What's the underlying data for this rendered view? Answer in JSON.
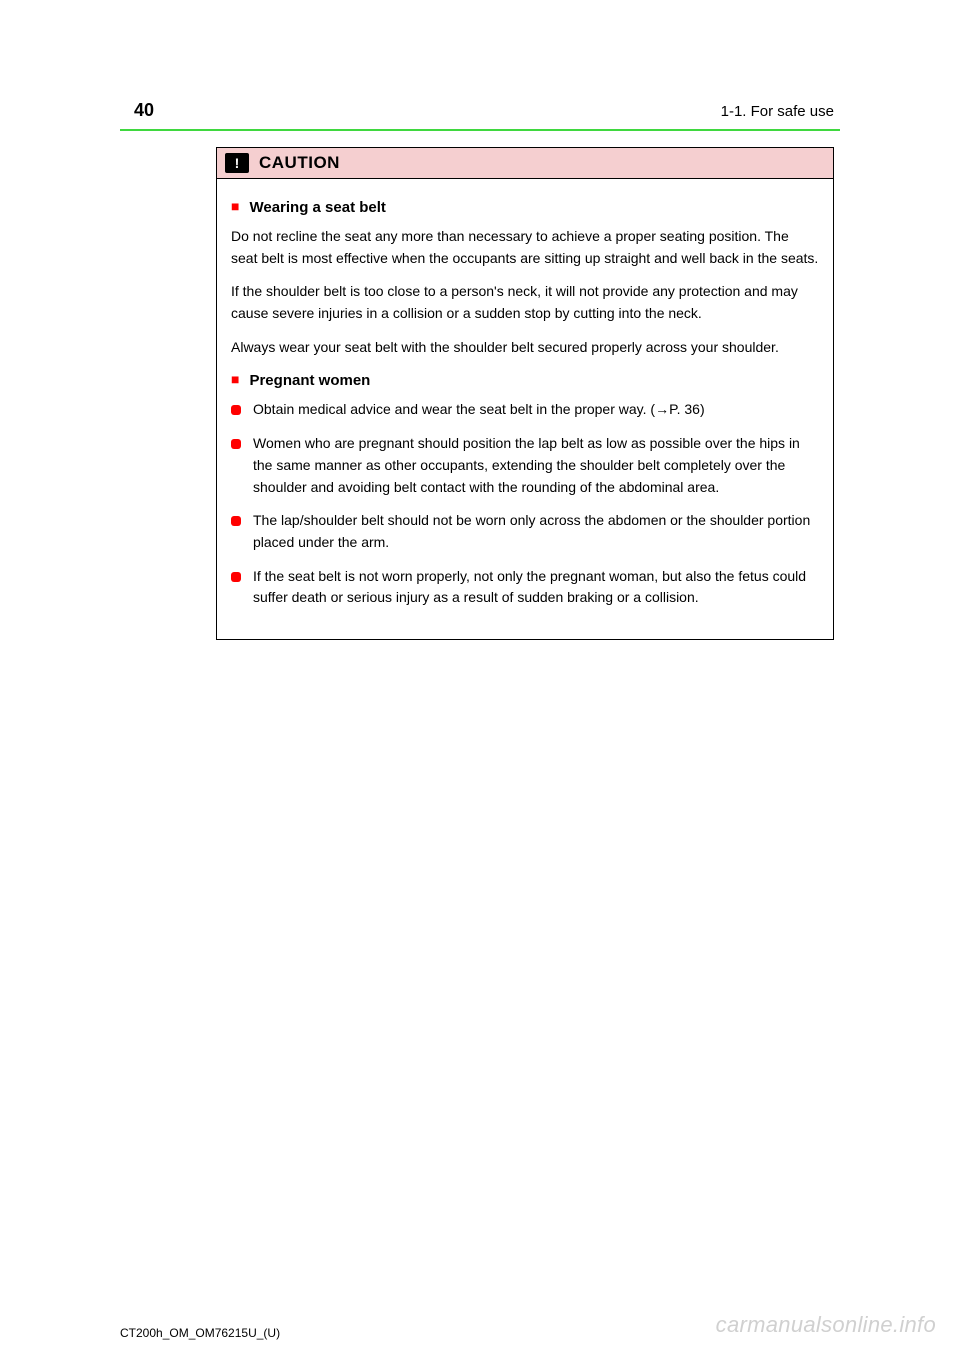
{
  "colors": {
    "rule": "#3fd83f",
    "caution_bg": "#f5cfd0",
    "marker": "#ff0000",
    "watermark": "#d0d0d0",
    "text": "#000000",
    "icon_bg": "#000000",
    "page_bg": "#ffffff"
  },
  "header": {
    "page_number": "40",
    "section": "1-1. For safe use"
  },
  "caution": {
    "icon_glyph": "!",
    "title": "CAUTION",
    "blocks": [
      {
        "type": "heading",
        "text": "Wearing a seat belt"
      },
      {
        "type": "para",
        "text": "Do not recline the seat any more than necessary to achieve a proper seating position. The seat belt is most effective when the occupants are sitting up straight and well back in the seats."
      },
      {
        "type": "para",
        "text": "If the shoulder belt is too close to a person's neck, it will not provide any protection and may cause severe injuries in a collision or a sudden stop by cutting into the neck."
      },
      {
        "type": "para",
        "text": "Always wear your seat belt with the shoulder belt secured properly across your shoulder."
      },
      {
        "type": "heading",
        "text": "Pregnant women"
      },
      {
        "type": "bullet",
        "text": "Obtain medical advice and wear the seat belt in the proper way. (→P. 36)"
      },
      {
        "type": "bullet",
        "text": "Women who are pregnant should position the lap belt as low as possible over the hips in the same manner as other occupants, extending the shoulder belt completely over the shoulder and avoiding belt contact with the rounding of the abdominal area."
      },
      {
        "type": "bullet",
        "text": "The lap/shoulder belt should not be worn only across the abdomen or the shoulder portion placed under the arm."
      },
      {
        "type": "bullet",
        "text": "If the seat belt is not worn properly, not only the pregnant woman, but also the fetus could suffer death or serious injury as a result of sudden braking or a collision."
      }
    ]
  },
  "footer": {
    "doc_ref": "CT200h_OM_OM76215U_(U)"
  },
  "watermark": "carmanualsonline.info"
}
